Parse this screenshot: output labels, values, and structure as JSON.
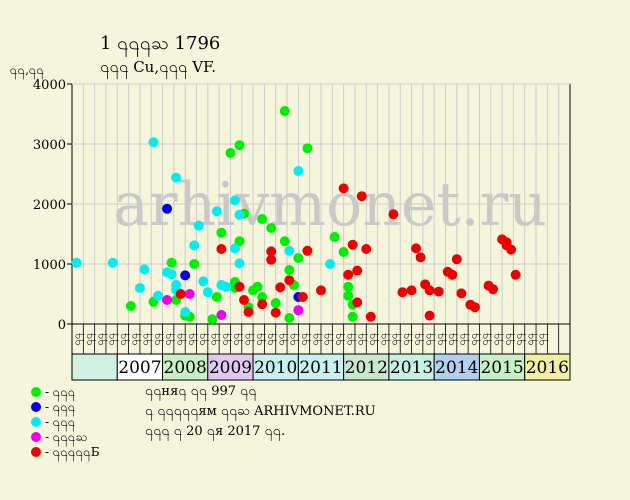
{
  "header": {
    "title": "1 ႖႖႖ႀ 1796",
    "subtitle": "႖႖႖ Cu,႖႖႖ VF."
  },
  "watermark": "arhivmonet.ru",
  "footer": {
    "line1": "႖႖ня႖ ႖႖ 997 ႖႖",
    "line2": "႖ ႖႖႖႖႖ям ႖႖ႀ ARHIVMONET.RU",
    "line3": "႖႖႖ ႖ 20 ႖я 2017 ႖႖."
  },
  "chart_data": {
    "type": "scatter",
    "ylabel": "႖႖,႖႖",
    "ylim": [
      0,
      4000
    ],
    "yticks": [
      0,
      1000,
      2000,
      3000,
      4000
    ],
    "years": [
      "2007",
      "2008",
      "2009",
      "2010",
      "2011",
      "2012",
      "2013",
      "2014",
      "2015",
      "2016"
    ],
    "year_colors": [
      "#d0f0e0",
      "#ffffff",
      "#c8f0c8",
      "#e0c8f0",
      "#c8f0f0",
      "#c8f0f0",
      "#c8e8d0",
      "#c8f0e0",
      "#b0d0f0",
      "#c8f0c8",
      "#f0f0a0",
      "#d8e8e8"
    ],
    "x_tick_labels": [
      "႖႖",
      "႖႖",
      "႖႖",
      "႖႖",
      "႖႖",
      "႖႖",
      "႖႖",
      "႖႖",
      "႖႖",
      "႖႖",
      "႖႖",
      "႖႖",
      "႖႖",
      "႖႖",
      "႖႖",
      "႖႖",
      "႖႖",
      "႖႖",
      "႖႖",
      "႖႖",
      "႖႖",
      "႖႖",
      "႖႖",
      "႖႖",
      "႖႖",
      "႖႖",
      "႖႖",
      "႖႖",
      "႖႖",
      "႖႖",
      "႖႖",
      "႖႖",
      "႖႖",
      "႖႖",
      "႖႖",
      "႖႖",
      "႖႖",
      "႖႖",
      "႖႖",
      "႖႖",
      "႖႖",
      "႖႖"
    ],
    "series": [
      {
        "name": "- ႖႖႖",
        "color": "#00ee00",
        "points": [
          [
            2007.3,
            300
          ],
          [
            2007.8,
            370
          ],
          [
            2008.2,
            1020
          ],
          [
            2008.3,
            400
          ],
          [
            2008.4,
            500
          ],
          [
            2008.5,
            140
          ],
          [
            2008.6,
            120
          ],
          [
            2008.7,
            1000
          ],
          [
            2009.1,
            80
          ],
          [
            2009.2,
            450
          ],
          [
            2009.3,
            1520
          ],
          [
            2009.5,
            2850
          ],
          [
            2009.6,
            700
          ],
          [
            2009.6,
            600
          ],
          [
            2009.7,
            2980
          ],
          [
            2009.7,
            1380
          ],
          [
            2009.8,
            1840
          ],
          [
            2009.9,
            280
          ],
          [
            2010.0,
            560
          ],
          [
            2010.1,
            620
          ],
          [
            2010.2,
            450
          ],
          [
            2010.2,
            1750
          ],
          [
            2010.4,
            1600
          ],
          [
            2010.5,
            350
          ],
          [
            2010.7,
            3550
          ],
          [
            2010.7,
            1380
          ],
          [
            2010.8,
            900
          ],
          [
            2010.8,
            100
          ],
          [
            2010.9,
            650
          ],
          [
            2011.0,
            1100
          ],
          [
            2011.2,
            2930
          ],
          [
            2011.8,
            1450
          ],
          [
            2012.0,
            1200
          ],
          [
            2012.1,
            620
          ],
          [
            2012.1,
            470
          ],
          [
            2012.2,
            320
          ],
          [
            2012.2,
            120
          ]
        ]
      },
      {
        "name": "- ႖႖႖",
        "color": "#0000ee",
        "points": [
          [
            2008.1,
            1920
          ],
          [
            2008.5,
            810
          ],
          [
            2011.0,
            450
          ]
        ]
      },
      {
        "name": "- ႖႖႖",
        "color": "#00eeee",
        "points": [
          [
            2006.1,
            1020
          ],
          [
            2006.9,
            1020
          ],
          [
            2007.5,
            600
          ],
          [
            2007.6,
            910
          ],
          [
            2007.8,
            3030
          ],
          [
            2007.9,
            470
          ],
          [
            2008.1,
            860
          ],
          [
            2008.2,
            830
          ],
          [
            2008.3,
            570
          ],
          [
            2008.3,
            650
          ],
          [
            2008.3,
            2440
          ],
          [
            2008.5,
            200
          ],
          [
            2008.7,
            1310
          ],
          [
            2008.8,
            1640
          ],
          [
            2008.9,
            710
          ],
          [
            2009.0,
            530
          ],
          [
            2009.2,
            1880
          ],
          [
            2009.3,
            650
          ],
          [
            2009.4,
            620
          ],
          [
            2009.6,
            2060
          ],
          [
            2009.6,
            1260
          ],
          [
            2009.7,
            1010
          ],
          [
            2009.7,
            1820
          ],
          [
            2010.8,
            1220
          ],
          [
            2011.0,
            2550
          ],
          [
            2011.7,
            1000
          ]
        ]
      },
      {
        "name": "- ႖႖႖ႀ",
        "color": "#ee00ee",
        "points": [
          [
            2008.1,
            400
          ],
          [
            2008.6,
            500
          ],
          [
            2009.3,
            150
          ],
          [
            2011.0,
            230
          ]
        ]
      },
      {
        "name": "- ႖႖႖႖႖Б",
        "color": "#ee0000",
        "points": [
          [
            2008.4,
            500
          ],
          [
            2009.3,
            1250
          ],
          [
            2009.7,
            620
          ],
          [
            2009.8,
            400
          ],
          [
            2009.9,
            200
          ],
          [
            2010.2,
            330
          ],
          [
            2010.4,
            1070
          ],
          [
            2010.4,
            1210
          ],
          [
            2010.5,
            190
          ],
          [
            2010.6,
            610
          ],
          [
            2010.8,
            730
          ],
          [
            2011.1,
            450
          ],
          [
            2011.2,
            1220
          ],
          [
            2011.5,
            560
          ],
          [
            2012.0,
            2260
          ],
          [
            2012.1,
            820
          ],
          [
            2012.2,
            1320
          ],
          [
            2012.3,
            890
          ],
          [
            2012.3,
            360
          ],
          [
            2012.4,
            2130
          ],
          [
            2012.5,
            1250
          ],
          [
            2012.6,
            120
          ],
          [
            2013.1,
            1830
          ],
          [
            2013.3,
            530
          ],
          [
            2013.5,
            560
          ],
          [
            2013.6,
            1260
          ],
          [
            2013.7,
            1110
          ],
          [
            2013.8,
            660
          ],
          [
            2013.9,
            560
          ],
          [
            2013.9,
            140
          ],
          [
            2014.1,
            540
          ],
          [
            2014.3,
            870
          ],
          [
            2014.4,
            820
          ],
          [
            2014.5,
            1080
          ],
          [
            2014.6,
            510
          ],
          [
            2014.8,
            320
          ],
          [
            2014.9,
            280
          ],
          [
            2015.2,
            640
          ],
          [
            2015.3,
            580
          ],
          [
            2015.5,
            1410
          ],
          [
            2015.6,
            1360
          ],
          [
            2015.6,
            1310
          ],
          [
            2015.7,
            1240
          ],
          [
            2015.8,
            820
          ]
        ]
      }
    ]
  }
}
